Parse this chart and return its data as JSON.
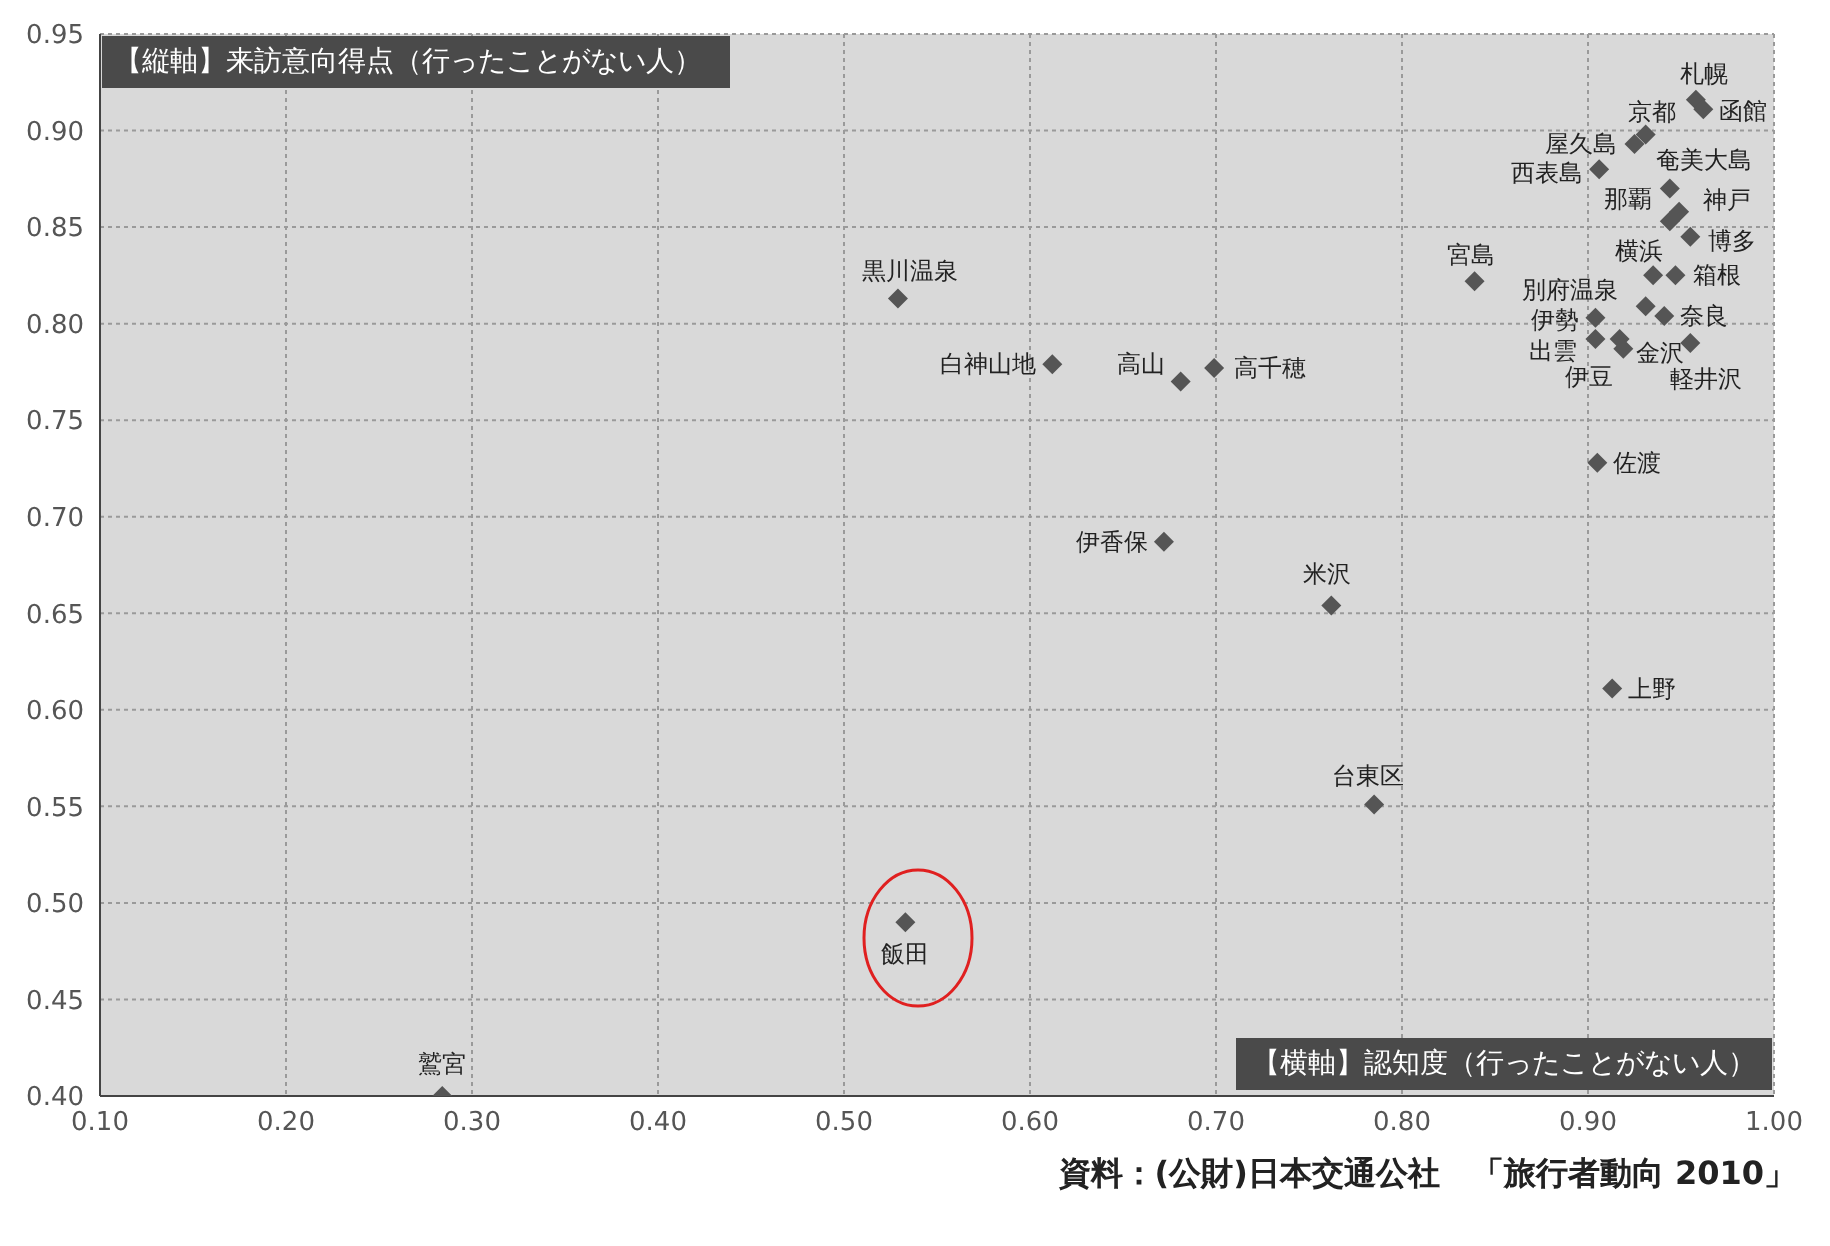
{
  "chart_data": {
    "type": "scatter",
    "xlabel": "【横軸】認知度（行ったことがない人）",
    "ylabel": "【縦軸】来訪意向得点（行ったことがない人）",
    "annotations": [
      "資料：(公財)日本交通公社　「旅行者動向 2010」"
    ],
    "xlim": [
      0.1,
      1.0
    ],
    "ylim": [
      0.4,
      0.95
    ],
    "xticks": [
      {
        "value": 0.1,
        "label": "0.10"
      },
      {
        "value": 0.2,
        "label": "0.20"
      },
      {
        "value": 0.3,
        "label": "0.30"
      },
      {
        "value": 0.4,
        "label": "0.40"
      },
      {
        "value": 0.5,
        "label": "0.50"
      },
      {
        "value": 0.6,
        "label": "0.60"
      },
      {
        "value": 0.7,
        "label": "0.70"
      },
      {
        "value": 0.8,
        "label": "0.80"
      },
      {
        "value": 0.9,
        "label": "0.90"
      },
      {
        "value": 1.0,
        "label": "1.00"
      }
    ],
    "yticks": [
      {
        "value": 0.4,
        "label": "0.40"
      },
      0.45,
      {
        "value": 0.5,
        "label": "0.50"
      },
      0.55,
      {
        "value": 0.6,
        "label": "0.60"
      },
      0.65,
      {
        "value": 0.7,
        "label": "0.70"
      },
      0.75,
      {
        "value": 0.8,
        "label": "0.80"
      },
      0.85,
      {
        "value": 0.9,
        "label": "0.90"
      },
      0.95
    ],
    "grid": true,
    "marker": "diamond",
    "series": [
      {
        "name": "札幌",
        "color": "#555555",
        "x": [
          0.958
        ],
        "values": [
          0.916
        ]
      },
      {
        "name": "函館",
        "color": "#555555",
        "x": [
          0.962
        ],
        "values": [
          0.911
        ]
      },
      {
        "name": "京都",
        "color": "#555555",
        "x": [
          0.931
        ],
        "values": [
          0.898
        ]
      },
      {
        "name": "屋久島",
        "color": "#555555",
        "x": [
          0.925
        ],
        "values": [
          0.893
        ]
      },
      {
        "name": "西表島",
        "color": "#555555",
        "x": [
          0.906
        ],
        "values": [
          0.88
        ]
      },
      {
        "name": "奄美大島",
        "color": "#555555",
        "x": [
          0.944
        ],
        "values": [
          0.87
        ]
      },
      {
        "name": "那覇",
        "color": "#555555",
        "x": [
          0.944
        ],
        "values": [
          0.853
        ]
      },
      {
        "name": "神戸",
        "color": "#555555",
        "x": [
          0.949
        ],
        "values": [
          0.858
        ]
      },
      {
        "name": "博多",
        "color": "#555555",
        "x": [
          0.955
        ],
        "values": [
          0.845
        ]
      },
      {
        "name": "宮島",
        "color": "#555555",
        "x": [
          0.839
        ],
        "values": [
          0.822
        ]
      },
      {
        "name": "横浜",
        "color": "#555555",
        "x": [
          0.935
        ],
        "values": [
          0.825
        ]
      },
      {
        "name": "箱根",
        "color": "#555555",
        "x": [
          0.947
        ],
        "values": [
          0.825
        ]
      },
      {
        "name": "別府温泉",
        "color": "#555555",
        "x": [
          0.931
        ],
        "values": [
          0.809
        ]
      },
      {
        "name": "奈良",
        "color": "#555555",
        "x": [
          0.941
        ],
        "values": [
          0.804
        ]
      },
      {
        "name": "伊勢",
        "color": "#555555",
        "x": [
          0.904
        ],
        "values": [
          0.803
        ]
      },
      {
        "name": "出雲",
        "color": "#555555",
        "x": [
          0.904
        ],
        "values": [
          0.792
        ]
      },
      {
        "name": "金沢",
        "color": "#555555",
        "x": [
          0.917
        ],
        "values": [
          0.792
        ]
      },
      {
        "name": "伊豆",
        "color": "#555555",
        "x": [
          0.919
        ],
        "values": [
          0.787
        ]
      },
      {
        "name": "軽井沢",
        "color": "#555555",
        "x": [
          0.955
        ],
        "values": [
          0.79
        ]
      },
      {
        "name": "黒川温泉",
        "color": "#555555",
        "x": [
          0.529
        ],
        "values": [
          0.813
        ]
      },
      {
        "name": "白神山地",
        "color": "#555555",
        "x": [
          0.612
        ],
        "values": [
          0.779
        ]
      },
      {
        "name": "高山",
        "color": "#555555",
        "x": [
          0.681
        ],
        "values": [
          0.77
        ]
      },
      {
        "name": "高千穂",
        "color": "#555555",
        "x": [
          0.699
        ],
        "values": [
          0.777
        ]
      },
      {
        "name": "伊香保",
        "color": "#555555",
        "x": [
          0.672
        ],
        "values": [
          0.687
        ]
      },
      {
        "name": "米沢",
        "color": "#555555",
        "x": [
          0.762
        ],
        "values": [
          0.654
        ]
      },
      {
        "name": "佐渡",
        "color": "#555555",
        "x": [
          0.905
        ],
        "values": [
          0.728
        ]
      },
      {
        "name": "上野",
        "color": "#555555",
        "x": [
          0.913
        ],
        "values": [
          0.611
        ]
      },
      {
        "name": "台東区",
        "color": "#555555",
        "x": [
          0.785
        ],
        "values": [
          0.551
        ]
      },
      {
        "name": "飯田",
        "color": "#555555",
        "x": [
          0.533
        ],
        "values": [
          0.49
        ]
      },
      {
        "name": "鷲宮",
        "color": "#555555",
        "x": [
          0.284
        ],
        "values": [
          0.4
        ]
      }
    ]
  }
}
